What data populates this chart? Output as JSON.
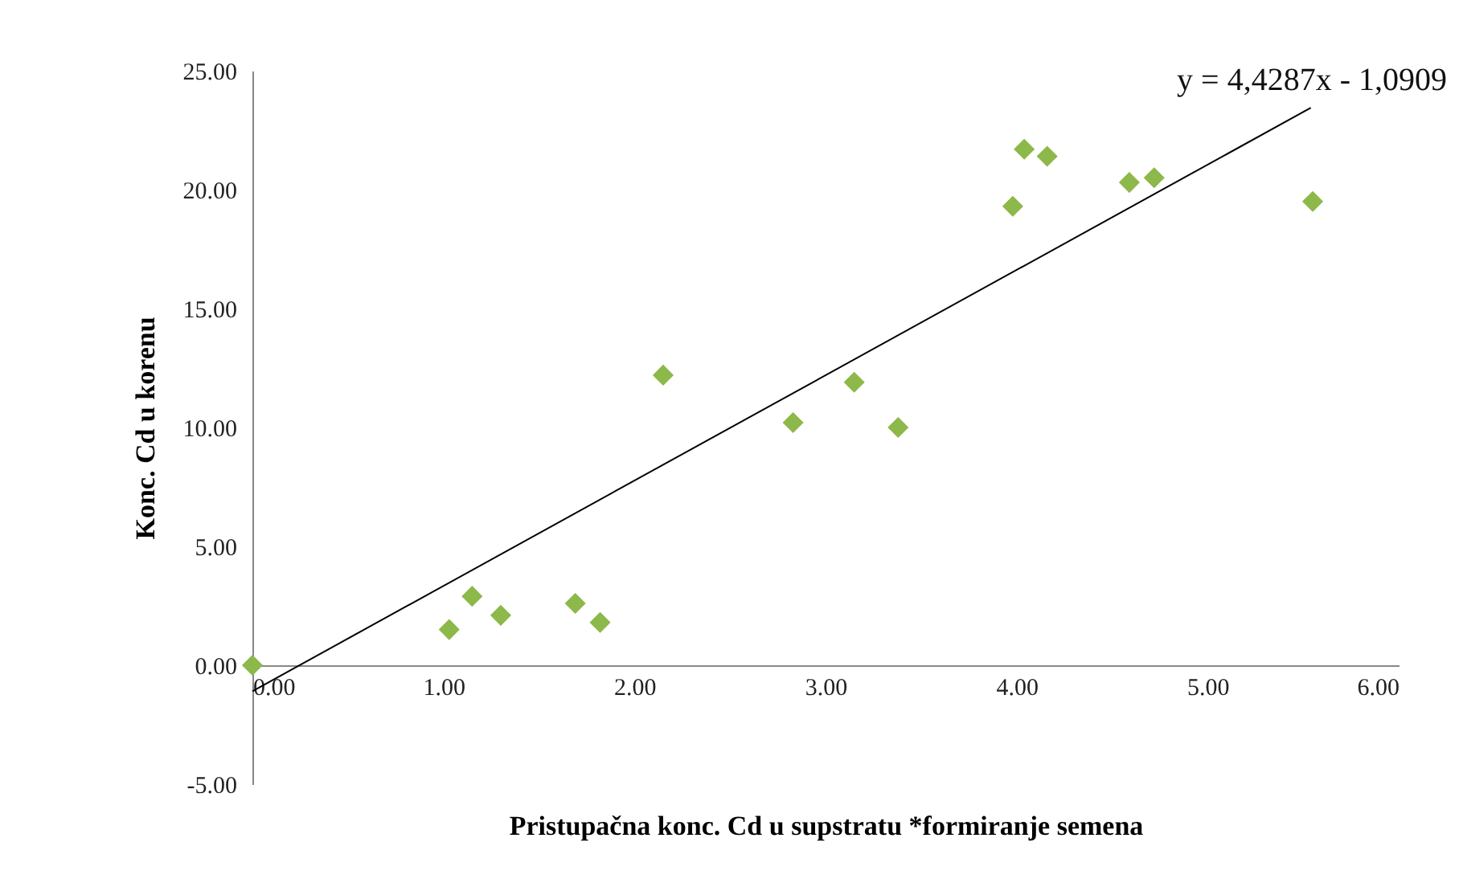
{
  "chart_data": {
    "type": "scatter",
    "xlabel": "Pristupačna konc. Cd u supstratu *formiranje semena",
    "ylabel": "Konc. Cd u korenu",
    "annotations": [
      "y = 4,4287x - 1,0909"
    ],
    "series": [
      {
        "color": "#8db84a",
        "marker": "diamond",
        "x": [
          0,
          1.03,
          1.15,
          1.3,
          1.69,
          1.82,
          2.15,
          2.83,
          3.15,
          3.38,
          3.98,
          4.04,
          4.16,
          4.59,
          4.72,
          5.55
        ],
        "values": [
          0,
          1.5,
          2.9,
          2.1,
          2.6,
          1.8,
          12.2,
          10.2,
          11.9,
          10.0,
          19.3,
          21.7,
          21.4,
          20.3,
          20.5,
          19.5
        ]
      },
      {
        "type": "line",
        "color": "#000000",
        "line_style": "solid",
        "x": [
          0,
          5.54
        ],
        "values": [
          -1.09,
          23.44
        ]
      }
    ],
    "xlim": [
      0,
      6
    ],
    "ylim": [
      -5,
      25
    ],
    "xticks": [
      {
        "value": 0,
        "label": "0.00"
      },
      {
        "value": 1,
        "label": "1.00"
      },
      {
        "value": 2,
        "label": "2.00"
      },
      {
        "value": 3,
        "label": "3.00"
      },
      {
        "value": 4,
        "label": "4.00"
      },
      {
        "value": 5,
        "label": "5.00"
      },
      {
        "value": 6,
        "label": "6.00"
      }
    ],
    "yticks": [
      {
        "value": -5,
        "label": "-5.00"
      },
      {
        "value": 0,
        "label": "0.00"
      },
      {
        "value": 5,
        "label": "5.00"
      },
      {
        "value": 10,
        "label": "10.00"
      },
      {
        "value": 15,
        "label": "15.00"
      },
      {
        "value": 20,
        "label": "20.00"
      },
      {
        "value": 25,
        "label": "25.00"
      }
    ],
    "grid": false
  }
}
